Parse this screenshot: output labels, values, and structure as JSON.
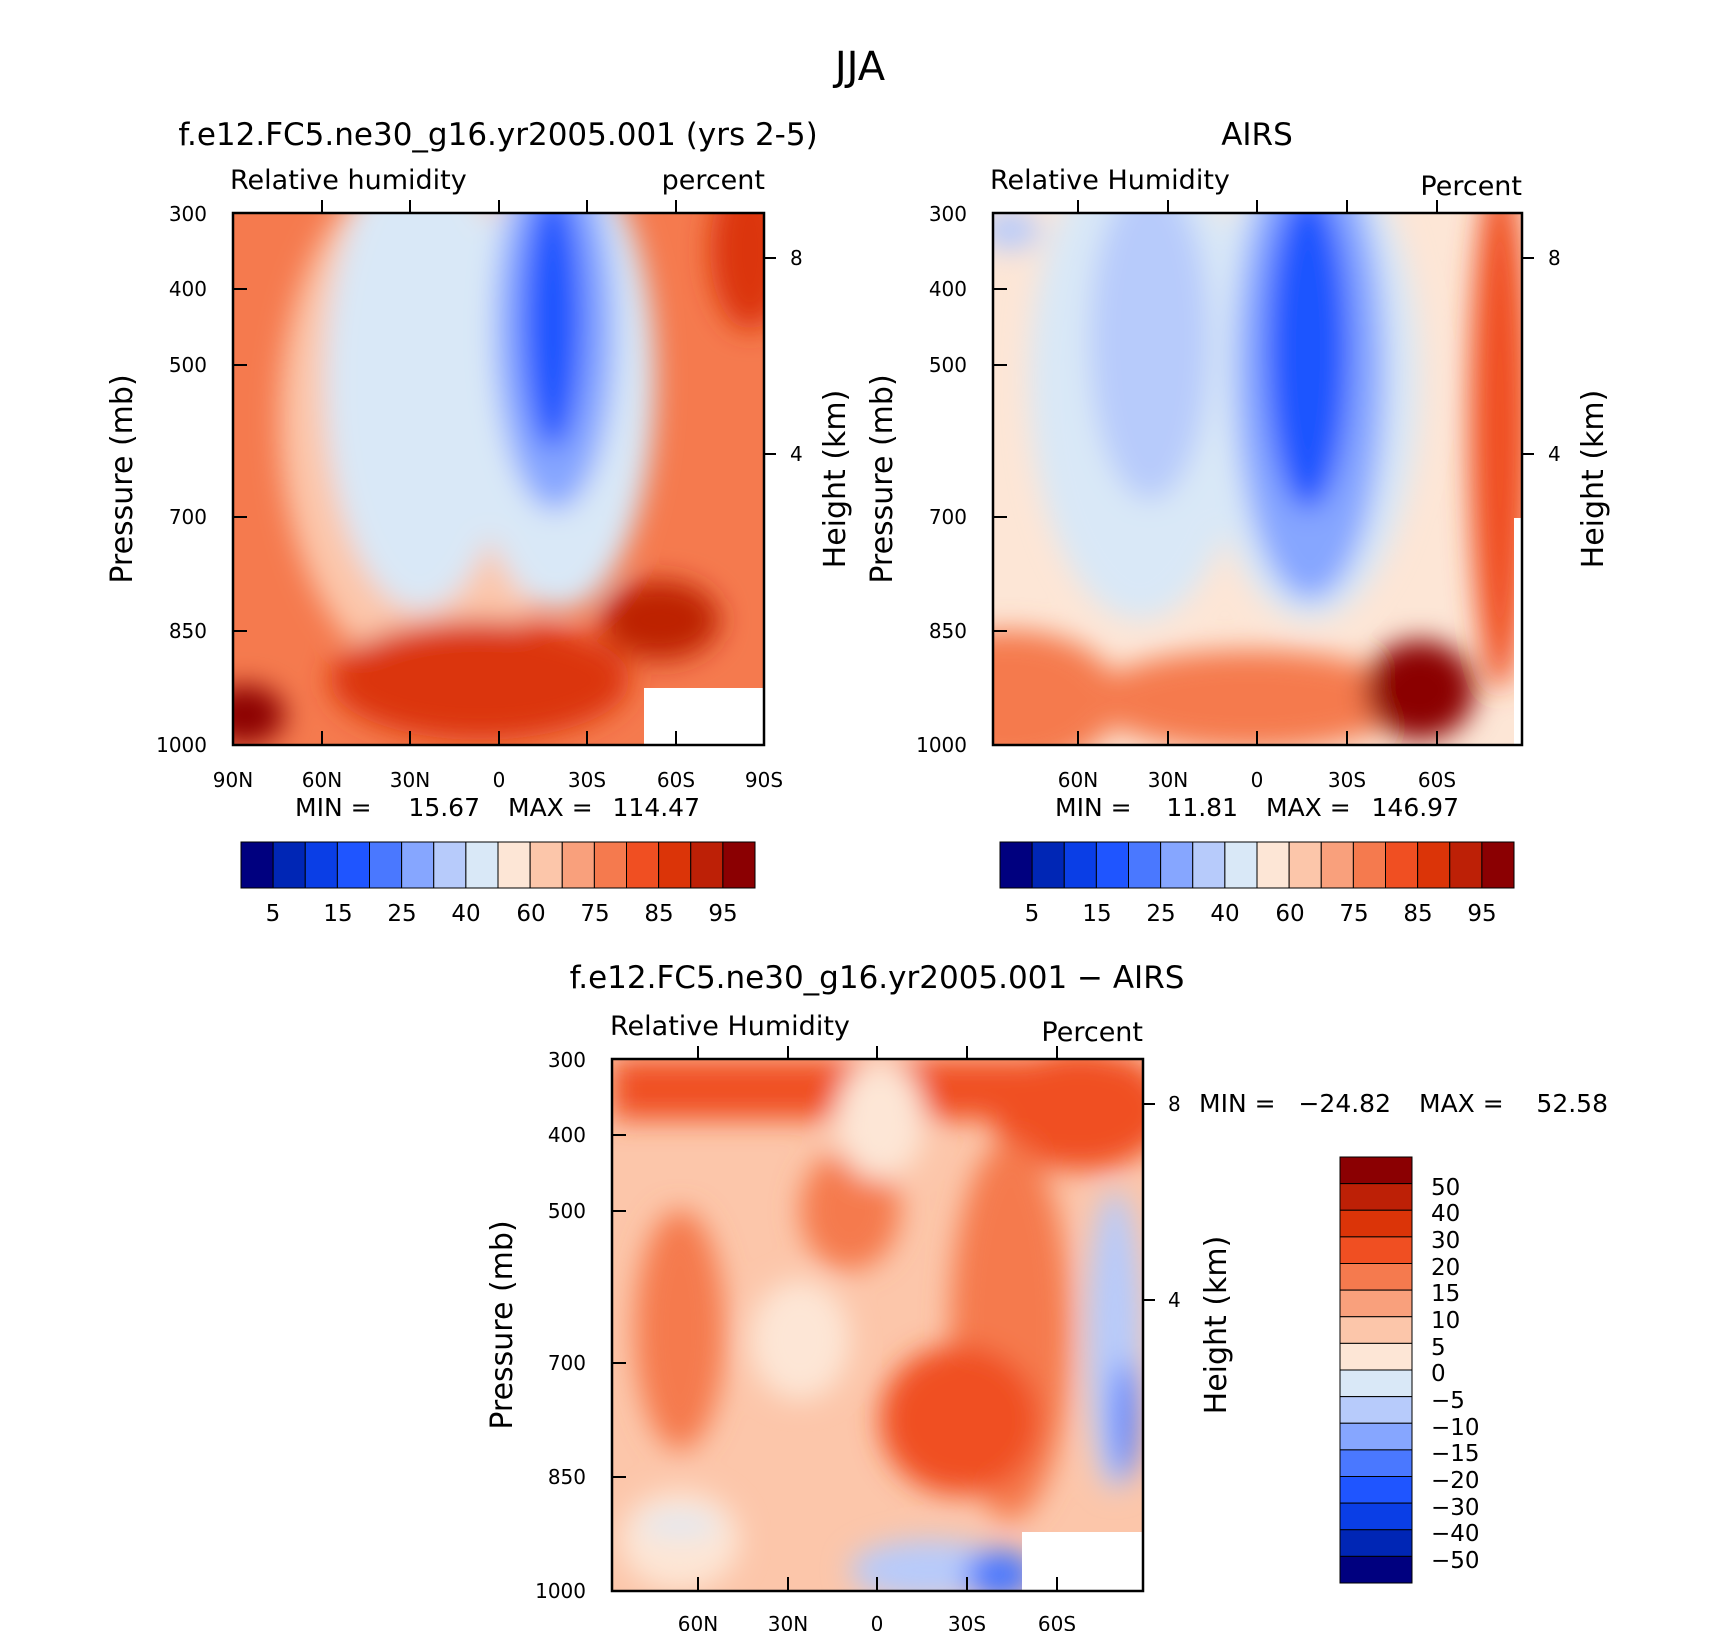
{
  "figure": {
    "title": "JJA"
  },
  "chart_data": [
    {
      "type": "heatmap",
      "title": "f.e12.FC5.ne30_g16.yr2005.001 (yrs 2-5)",
      "left_label": "Relative humidity",
      "right_label": "percent",
      "ylabel": "Pressure (mb)",
      "y2label": "Height (km)",
      "x_ticks": [
        "90N",
        "60N",
        "30N",
        "0",
        "30S",
        "60S",
        "90S"
      ],
      "y_ticks": [
        300,
        400,
        500,
        700,
        850,
        1000
      ],
      "y2_ticks": [
        8,
        4
      ],
      "ylim": [
        1000,
        300
      ],
      "stats": {
        "min_label": "MIN =",
        "min": "15.67",
        "max_label": "MAX =",
        "max": "114.47"
      },
      "colorbar_labels": [
        "5",
        "15",
        "25",
        "40",
        "60",
        "75",
        "85",
        "95"
      ]
    },
    {
      "type": "heatmap",
      "title": "AIRS",
      "left_label": "Relative Humidity",
      "right_label": "Percent",
      "ylabel": "Pressure (mb)",
      "y2label": "Height (km)",
      "x_ticks": [
        "60N",
        "30N",
        "0",
        "30S",
        "60S"
      ],
      "y_ticks": [
        300,
        400,
        500,
        700,
        850,
        1000
      ],
      "y2_ticks": [
        8,
        4
      ],
      "ylim": [
        1000,
        300
      ],
      "stats": {
        "min_label": "MIN =",
        "min": "11.81",
        "max_label": "MAX =",
        "max": "146.97"
      },
      "colorbar_labels": [
        "5",
        "15",
        "25",
        "40",
        "60",
        "75",
        "85",
        "95"
      ]
    },
    {
      "type": "heatmap",
      "title": "f.e12.FC5.ne30_g16.yr2005.001 − AIRS",
      "left_label": "Relative Humidity",
      "right_label": "Percent",
      "ylabel": "Pressure (mb)",
      "y2label": "Height (km)",
      "x_ticks": [
        "60N",
        "30N",
        "0",
        "30S",
        "60S"
      ],
      "y_ticks": [
        300,
        400,
        500,
        700,
        850,
        1000
      ],
      "y2_ticks": [
        8,
        4
      ],
      "ylim": [
        1000,
        300
      ],
      "stats": {
        "min_label": "MIN =",
        "min": "−24.82",
        "max_label": "MAX =",
        "max": "52.58"
      },
      "colorbar_labels": [
        "50",
        "40",
        "30",
        "20",
        "15",
        "10",
        "5",
        "0",
        "−5",
        "−10",
        "−15",
        "−20",
        "−30",
        "−40",
        "−50"
      ]
    }
  ],
  "palette": [
    "#00007f",
    "#0026b5",
    "#0a3ee6",
    "#1f55ff",
    "#4a78ff",
    "#86a6ff",
    "#b7cbfb",
    "#d9e8f7",
    "#fde6d6",
    "#fcc6aa",
    "#f9a07c",
    "#f57a4e",
    "#f04f22",
    "#db3408",
    "#bd2006",
    "#8b0002"
  ]
}
